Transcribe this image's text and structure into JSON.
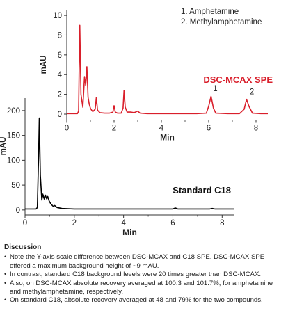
{
  "chart_data": [
    {
      "type": "line",
      "name_label": "DSC-MCAX SPE",
      "xlabel": "Min",
      "ylabel": "mAU",
      "xlim": [
        0,
        8.5
      ],
      "ylim": [
        -0.6,
        10.5
      ],
      "x_ticks": [
        "0",
        "2",
        "4",
        "6",
        "8"
      ],
      "y_ticks": [
        "0",
        "2",
        "4",
        "6",
        "8",
        "10"
      ],
      "color": "#d91f2b",
      "legend": [
        "1.  Amphetamine",
        "2.  Methylamphetamine"
      ],
      "peak_labels": [
        {
          "text": "1",
          "x": 6.1,
          "y": 1.9
        },
        {
          "text": "2",
          "x": 7.65,
          "y": 1.6
        }
      ],
      "points": [
        [
          0.0,
          0.05
        ],
        [
          0.3,
          0.05
        ],
        [
          0.45,
          0.05
        ],
        [
          0.5,
          0.3
        ],
        [
          0.55,
          9.0
        ],
        [
          0.6,
          2.0
        ],
        [
          0.68,
          0.7
        ],
        [
          0.75,
          3.8
        ],
        [
          0.8,
          2.9
        ],
        [
          0.85,
          4.8
        ],
        [
          0.9,
          1.7
        ],
        [
          0.95,
          1.0
        ],
        [
          1.0,
          0.6
        ],
        [
          1.05,
          0.4
        ],
        [
          1.1,
          0.25
        ],
        [
          1.2,
          0.5
        ],
        [
          1.25,
          1.7
        ],
        [
          1.3,
          0.4
        ],
        [
          1.4,
          0.15
        ],
        [
          1.6,
          0.1
        ],
        [
          1.8,
          0.1
        ],
        [
          1.95,
          0.2
        ],
        [
          2.0,
          0.85
        ],
        [
          2.05,
          0.2
        ],
        [
          2.15,
          0.1
        ],
        [
          2.3,
          0.1
        ],
        [
          2.38,
          0.6
        ],
        [
          2.42,
          2.4
        ],
        [
          2.47,
          0.7
        ],
        [
          2.55,
          0.2
        ],
        [
          2.7,
          0.2
        ],
        [
          2.85,
          0.15
        ],
        [
          3.0,
          0.3
        ],
        [
          3.1,
          0.1
        ],
        [
          3.4,
          0.05
        ],
        [
          3.8,
          0.05
        ],
        [
          4.5,
          0.05
        ],
        [
          5.5,
          0.05
        ],
        [
          5.9,
          0.1
        ],
        [
          6.0,
          0.8
        ],
        [
          6.1,
          1.8
        ],
        [
          6.2,
          0.6
        ],
        [
          6.3,
          0.1
        ],
        [
          6.8,
          0.05
        ],
        [
          7.3,
          0.05
        ],
        [
          7.5,
          0.5
        ],
        [
          7.6,
          1.5
        ],
        [
          7.7,
          0.8
        ],
        [
          7.85,
          0.1
        ],
        [
          8.2,
          0.05
        ],
        [
          8.5,
          0.05
        ]
      ]
    },
    {
      "type": "line",
      "name_label": "Standard C18",
      "xlabel": "Min",
      "ylabel": "mAU",
      "xlim": [
        0,
        8.5
      ],
      "ylim": [
        -10,
        225
      ],
      "x_ticks": [
        "0",
        "2",
        "4",
        "6",
        "8"
      ],
      "y_ticks": [
        "0",
        "50",
        "100",
        "150",
        "200"
      ],
      "color": "#000000",
      "points": [
        [
          0.0,
          2
        ],
        [
          0.3,
          2
        ],
        [
          0.45,
          2
        ],
        [
          0.5,
          5
        ],
        [
          0.55,
          110
        ],
        [
          0.58,
          185
        ],
        [
          0.62,
          70
        ],
        [
          0.68,
          20
        ],
        [
          0.72,
          32
        ],
        [
          0.78,
          22
        ],
        [
          0.82,
          30
        ],
        [
          0.88,
          22
        ],
        [
          0.92,
          27
        ],
        [
          0.98,
          18
        ],
        [
          1.05,
          12
        ],
        [
          1.15,
          7
        ],
        [
          1.2,
          9
        ],
        [
          1.3,
          5
        ],
        [
          1.5,
          3
        ],
        [
          2.0,
          2
        ],
        [
          3.0,
          2
        ],
        [
          4.0,
          2
        ],
        [
          5.0,
          2
        ],
        [
          6.0,
          2
        ],
        [
          6.1,
          4
        ],
        [
          6.2,
          2
        ],
        [
          7.5,
          2
        ],
        [
          7.6,
          3
        ],
        [
          7.7,
          2
        ],
        [
          8.5,
          2
        ]
      ]
    }
  ],
  "discussion": {
    "title": "Discussion",
    "bullets": [
      "Note the Y-axis scale difference between DSC-MCAX and C18 SPE. DSC-MCAX SPE offered a maximum background height of ~9 mAU.",
      "In contrast, standard C18 background levels were 20 times greater than DSC-MCAX.",
      "Also, on DSC-MCAX absolute recovery averaged at 100.3 and 101.7%, for amphetamine and methylamphetamine, respectively.",
      "On standard C18, absolute recovery averaged at 48 and 79% for the two compounds."
    ]
  }
}
